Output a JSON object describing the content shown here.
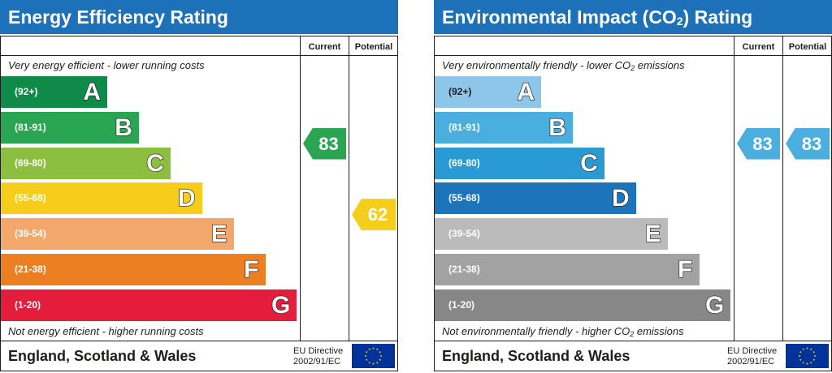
{
  "panels": [
    {
      "title": "Energy Efficiency Rating",
      "top_text": "Very energy efficient - lower running costs",
      "bottom_text": "Not energy efficient - higher running costs",
      "region": "England, Scotland & Wales",
      "directive_line1": "EU Directive",
      "directive_line2": "2002/91/EC",
      "col_current": "Current",
      "col_potential": "Potential",
      "current": "83",
      "potential": "62"
    },
    {
      "title_main": "Environmental Impact (CO",
      "title_sub": "2",
      "title_end": ") Rating",
      "top_text_main": "Very environmentally friendly - lower CO",
      "top_text_sub": "2",
      "top_text_end": " emissions",
      "bottom_text_main": "Not environmentally friendly - higher CO",
      "bottom_text_sub": "2",
      "bottom_text_end": " emissions",
      "region": "England, Scotland & Wales",
      "directive_line1": "EU Directive",
      "directive_line2": "2002/91/EC",
      "col_current": "Current",
      "col_potential": "Potential",
      "current": "83",
      "potential": "83"
    }
  ],
  "chart_data": [
    {
      "type": "bar",
      "title": "Energy Efficiency Rating",
      "categories": [
        "A",
        "B",
        "C",
        "D",
        "E",
        "F",
        "G"
      ],
      "ranges": [
        "(92+)",
        "(81-91)",
        "(69-80)",
        "(55-68)",
        "(39-54)",
        "(21-38)",
        "(1-20)"
      ],
      "colors": [
        "#0f8a48",
        "#2aa653",
        "#8cbf3f",
        "#f5cd1a",
        "#f3a76b",
        "#ed7f23",
        "#e31d3b"
      ],
      "current": {
        "value": 83,
        "band": "B",
        "color": "#2aa653"
      },
      "potential": {
        "value": 62,
        "band": "D",
        "color": "#f5cd1a"
      }
    },
    {
      "type": "bar",
      "title": "Environmental Impact (CO2) Rating",
      "categories": [
        "A",
        "B",
        "C",
        "D",
        "E",
        "F",
        "G"
      ],
      "ranges": [
        "(92+)",
        "(81-91)",
        "(69-80)",
        "(55-68)",
        "(39-54)",
        "(21-38)",
        "(1-20)"
      ],
      "colors": [
        "#8dc6e8",
        "#4aaede",
        "#2a9ad4",
        "#1c74bb",
        "#bbbbbb",
        "#a2a2a2",
        "#878787"
      ],
      "current": {
        "value": 83,
        "band": "B",
        "color": "#4aaede"
      },
      "potential": {
        "value": 83,
        "band": "B",
        "color": "#4aaede"
      }
    }
  ]
}
